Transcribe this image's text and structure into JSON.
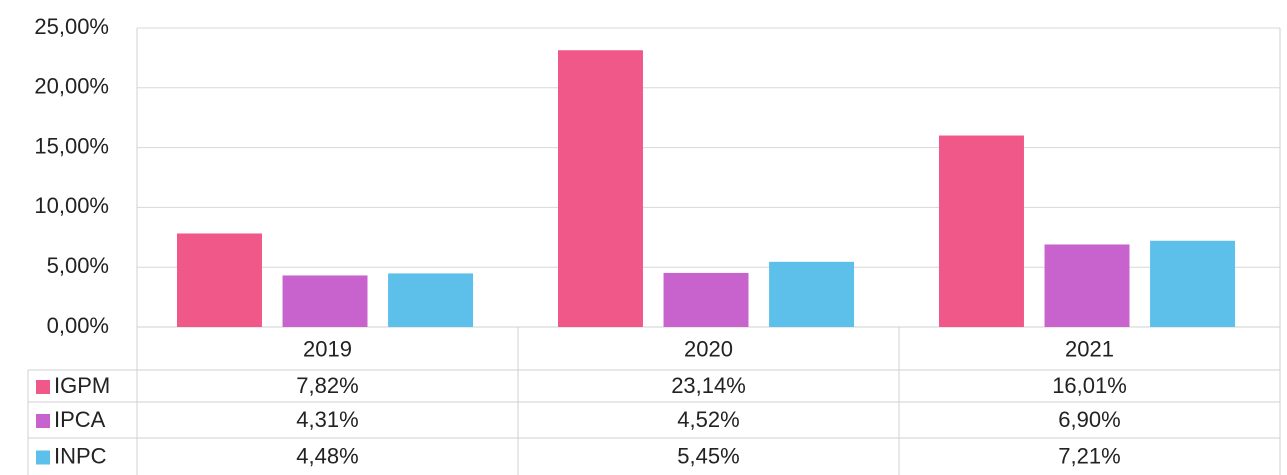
{
  "chart_data": {
    "type": "bar",
    "categories": [
      "2019",
      "2020",
      "2021"
    ],
    "series": [
      {
        "name": "IGPM",
        "color": "#f0588a",
        "values": [
          7.82,
          23.14,
          16.01
        ],
        "value_labels": [
          "7,82%",
          "23,14%",
          "16,01%"
        ]
      },
      {
        "name": "IPCA",
        "color": "#c862cc",
        "values": [
          4.31,
          4.52,
          6.9
        ],
        "value_labels": [
          "4,31%",
          "4,52%",
          "6,90%"
        ]
      },
      {
        "name": "INPC",
        "color": "#5cc0ea",
        "values": [
          4.48,
          5.45,
          7.21
        ],
        "value_labels": [
          "4,48%",
          "5,45%",
          "7,21%"
        ]
      }
    ],
    "ylim": [
      0,
      25
    ],
    "yticks": [
      {
        "value": 0,
        "label": "0,00%"
      },
      {
        "value": 5,
        "label": "5,00%"
      },
      {
        "value": 10,
        "label": "10,00%"
      },
      {
        "value": 15,
        "label": "15,00%"
      },
      {
        "value": 20,
        "label": "20,00%"
      },
      {
        "value": 25,
        "label": "25,00%"
      }
    ],
    "grid": true
  }
}
